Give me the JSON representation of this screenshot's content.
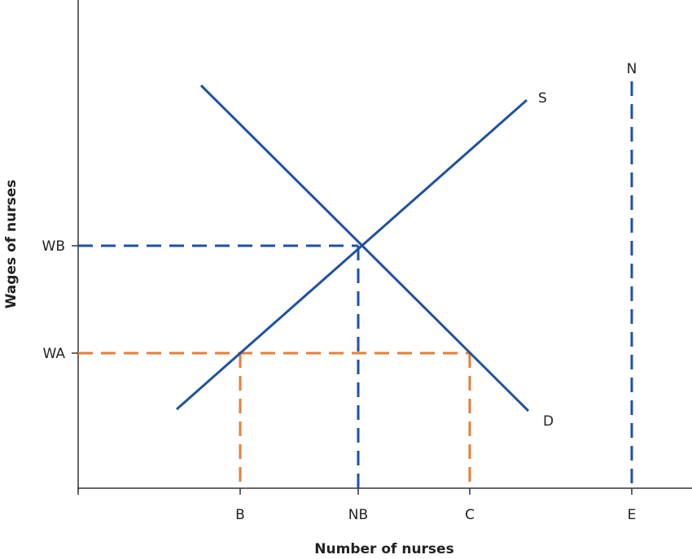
{
  "axes": {
    "x_label": "Number of nurses",
    "y_label": "Wages of nurses"
  },
  "y_ticks": [
    "WB",
    "WA"
  ],
  "x_ticks": [
    "B",
    "NB",
    "C",
    "E"
  ],
  "curves": {
    "supply": "S",
    "demand": "D",
    "nurses": "N"
  }
}
